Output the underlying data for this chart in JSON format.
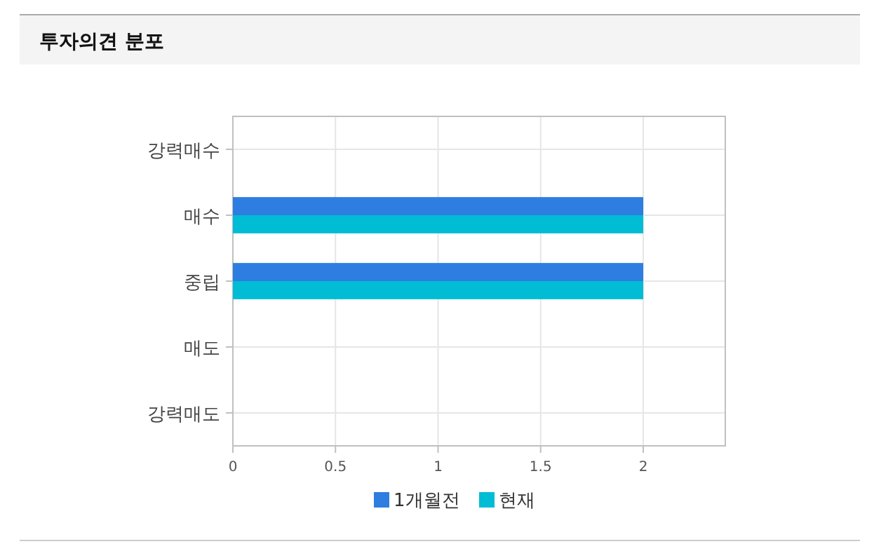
{
  "chart_data": {
    "type": "bar",
    "orientation": "horizontal",
    "title": "투자의견 분포",
    "categories": [
      "강력매수",
      "매수",
      "중립",
      "매도",
      "강력매도"
    ],
    "series": [
      {
        "name": "1개월전",
        "color": "#2e7de1",
        "values": [
          0,
          2,
          2,
          0,
          0
        ]
      },
      {
        "name": "현재",
        "color": "#00bcd4",
        "values": [
          0,
          2,
          2,
          0,
          0
        ]
      }
    ],
    "xlim": [
      0,
      2.4
    ],
    "xticks": [
      0,
      0.5,
      1,
      1.5,
      2
    ],
    "grid": true,
    "legend": "bottom"
  }
}
